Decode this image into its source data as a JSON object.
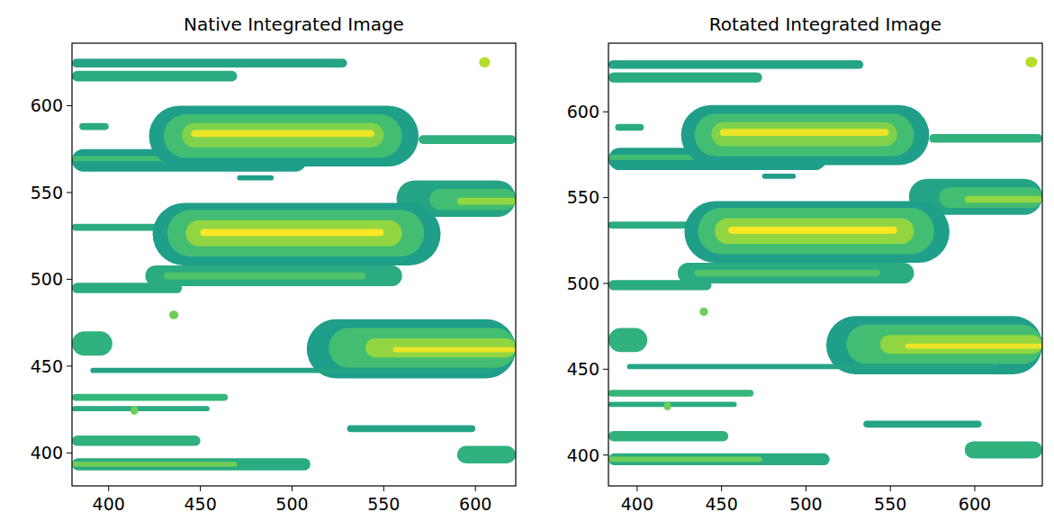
{
  "chart_data": [
    {
      "type": "heatmap",
      "title": "Native Integrated Image",
      "color": "viridis",
      "xlim": [
        380,
        622
      ],
      "ylim": [
        381,
        636
      ],
      "zlim": [
        0,
        1
      ],
      "xticks": [
        400,
        450,
        500,
        550,
        600
      ],
      "yticks": [
        400,
        450,
        500,
        550,
        600
      ],
      "features": [
        {
          "x": [
            380,
            530
          ],
          "y": [
            622,
            627
          ],
          "value": 0.25
        },
        {
          "x": [
            380,
            470
          ],
          "y": [
            614,
            620
          ],
          "value": 0.3
        },
        {
          "x": [
            602,
            608
          ],
          "y": [
            622,
            628
          ],
          "value": 0.8
        },
        {
          "x": [
            384,
            400
          ],
          "y": [
            586,
            590
          ],
          "value": 0.3
        },
        {
          "x": [
            380,
            508
          ],
          "y": [
            562,
            575
          ],
          "value": 0.2
        },
        {
          "x": [
            380,
            480
          ],
          "y": [
            568,
            571
          ],
          "value": 0.45
        },
        {
          "x": [
            422,
            569
          ],
          "y": [
            565,
            600
          ],
          "value": 0.2
        },
        {
          "x": [
            430,
            560
          ],
          "y": [
            570,
            595
          ],
          "value": 0.45
        },
        {
          "x": [
            440,
            550
          ],
          "y": [
            576,
            590
          ],
          "value": 0.65
        },
        {
          "x": [
            445,
            545
          ],
          "y": [
            582,
            586
          ],
          "value": 0.95
        },
        {
          "x": [
            569,
            622
          ],
          "y": [
            578,
            583
          ],
          "value": 0.35
        },
        {
          "x": [
            470,
            490
          ],
          "y": [
            557,
            560
          ],
          "value": 0.2
        },
        {
          "x": [
            557,
            622
          ],
          "y": [
            536,
            557
          ],
          "value": 0.25
        },
        {
          "x": [
            575,
            622
          ],
          "y": [
            540,
            552
          ],
          "value": 0.45
        },
        {
          "x": [
            590,
            622
          ],
          "y": [
            543,
            547
          ],
          "value": 0.7
        },
        {
          "x": [
            380,
            440
          ],
          "y": [
            528,
            532
          ],
          "value": 0.3
        },
        {
          "x": [
            424,
            581
          ],
          "y": [
            508,
            544
          ],
          "value": 0.2
        },
        {
          "x": [
            432,
            572
          ],
          "y": [
            513,
            540
          ],
          "value": 0.45
        },
        {
          "x": [
            442,
            560
          ],
          "y": [
            519,
            534
          ],
          "value": 0.7
        },
        {
          "x": [
            450,
            550
          ],
          "y": [
            525,
            529
          ],
          "value": 1.0
        },
        {
          "x": [
            420,
            560
          ],
          "y": [
            496,
            508
          ],
          "value": 0.3
        },
        {
          "x": [
            430,
            540
          ],
          "y": [
            500,
            504
          ],
          "value": 0.5
        },
        {
          "x": [
            380,
            440
          ],
          "y": [
            492,
            498
          ],
          "value": 0.3
        },
        {
          "x": [
            433,
            438
          ],
          "y": [
            477,
            482
          ],
          "value": 0.6
        },
        {
          "x": [
            380,
            402
          ],
          "y": [
            456,
            470
          ],
          "value": 0.35
        },
        {
          "x": [
            508,
            622
          ],
          "y": [
            443,
            477
          ],
          "value": 0.2
        },
        {
          "x": [
            520,
            622
          ],
          "y": [
            449,
            472
          ],
          "value": 0.45
        },
        {
          "x": [
            540,
            622
          ],
          "y": [
            455,
            466
          ],
          "value": 0.7
        },
        {
          "x": [
            555,
            622
          ],
          "y": [
            458,
            461
          ],
          "value": 0.95
        },
        {
          "x": [
            390,
            610
          ],
          "y": [
            446,
            449
          ],
          "value": 0.25
        },
        {
          "x": [
            380,
            465
          ],
          "y": [
            430,
            434
          ],
          "value": 0.4
        },
        {
          "x": [
            380,
            455
          ],
          "y": [
            424,
            427
          ],
          "value": 0.3
        },
        {
          "x": [
            412,
            416
          ],
          "y": [
            422,
            427
          ],
          "value": 0.6
        },
        {
          "x": [
            530,
            600
          ],
          "y": [
            412,
            416
          ],
          "value": 0.25
        },
        {
          "x": [
            380,
            450
          ],
          "y": [
            404,
            410
          ],
          "value": 0.35
        },
        {
          "x": [
            590,
            622
          ],
          "y": [
            394,
            404
          ],
          "value": 0.35
        },
        {
          "x": [
            380,
            510
          ],
          "y": [
            390,
            397
          ],
          "value": 0.3
        },
        {
          "x": [
            380,
            470
          ],
          "y": [
            392,
            395
          ],
          "value": 0.6
        }
      ]
    },
    {
      "type": "heatmap",
      "title": "Rotated Integrated Image",
      "color": "viridis",
      "xlim": [
        383,
        640
      ],
      "ylim": [
        382,
        640
      ],
      "zlim": [
        0,
        1
      ],
      "xticks": [
        400,
        450,
        500,
        550,
        600
      ],
      "yticks": [
        400,
        450,
        500,
        550,
        600
      ],
      "features": [
        {
          "x": [
            383,
            534
          ],
          "y": [
            625,
            630
          ],
          "value": 0.25
        },
        {
          "x": [
            383,
            474
          ],
          "y": [
            617,
            623
          ],
          "value": 0.3
        },
        {
          "x": [
            630,
            637
          ],
          "y": [
            626,
            632
          ],
          "value": 0.8
        },
        {
          "x": [
            387,
            404
          ],
          "y": [
            589,
            593
          ],
          "value": 0.3
        },
        {
          "x": [
            383,
            512
          ],
          "y": [
            566,
            579
          ],
          "value": 0.2
        },
        {
          "x": [
            383,
            484
          ],
          "y": [
            572,
            575
          ],
          "value": 0.45
        },
        {
          "x": [
            426,
            573
          ],
          "y": [
            569,
            604
          ],
          "value": 0.2
        },
        {
          "x": [
            434,
            564
          ],
          "y": [
            574,
            599
          ],
          "value": 0.45
        },
        {
          "x": [
            444,
            554
          ],
          "y": [
            580,
            594
          ],
          "value": 0.65
        },
        {
          "x": [
            449,
            549
          ],
          "y": [
            586,
            590
          ],
          "value": 0.95
        },
        {
          "x": [
            573,
            640
          ],
          "y": [
            582,
            587
          ],
          "value": 0.35
        },
        {
          "x": [
            474,
            494
          ],
          "y": [
            561,
            564
          ],
          "value": 0.2
        },
        {
          "x": [
            561,
            640
          ],
          "y": [
            540,
            561
          ],
          "value": 0.25
        },
        {
          "x": [
            579,
            640
          ],
          "y": [
            544,
            556
          ],
          "value": 0.45
        },
        {
          "x": [
            594,
            640
          ],
          "y": [
            547,
            551
          ],
          "value": 0.7
        },
        {
          "x": [
            383,
            444
          ],
          "y": [
            532,
            536
          ],
          "value": 0.3
        },
        {
          "x": [
            428,
            585
          ],
          "y": [
            512,
            548
          ],
          "value": 0.2
        },
        {
          "x": [
            436,
            576
          ],
          "y": [
            517,
            544
          ],
          "value": 0.45
        },
        {
          "x": [
            446,
            564
          ],
          "y": [
            523,
            538
          ],
          "value": 0.7
        },
        {
          "x": [
            454,
            554
          ],
          "y": [
            529,
            533
          ],
          "value": 1.0
        },
        {
          "x": [
            424,
            564
          ],
          "y": [
            500,
            512
          ],
          "value": 0.3
        },
        {
          "x": [
            434,
            544
          ],
          "y": [
            504,
            508
          ],
          "value": 0.5
        },
        {
          "x": [
            383,
            444
          ],
          "y": [
            496,
            502
          ],
          "value": 0.3
        },
        {
          "x": [
            437,
            442
          ],
          "y": [
            481,
            486
          ],
          "value": 0.6
        },
        {
          "x": [
            383,
            406
          ],
          "y": [
            460,
            474
          ],
          "value": 0.35
        },
        {
          "x": [
            512,
            640
          ],
          "y": [
            447,
            481
          ],
          "value": 0.2
        },
        {
          "x": [
            524,
            640
          ],
          "y": [
            453,
            476
          ],
          "value": 0.45
        },
        {
          "x": [
            544,
            640
          ],
          "y": [
            459,
            470
          ],
          "value": 0.7
        },
        {
          "x": [
            559,
            640
          ],
          "y": [
            462,
            465
          ],
          "value": 0.95
        },
        {
          "x": [
            394,
            614
          ],
          "y": [
            450,
            453
          ],
          "value": 0.25
        },
        {
          "x": [
            383,
            469
          ],
          "y": [
            434,
            438
          ],
          "value": 0.4
        },
        {
          "x": [
            383,
            459
          ],
          "y": [
            428,
            431
          ],
          "value": 0.3
        },
        {
          "x": [
            416,
            420
          ],
          "y": [
            426,
            431
          ],
          "value": 0.6
        },
        {
          "x": [
            534,
            604
          ],
          "y": [
            416,
            420
          ],
          "value": 0.25
        },
        {
          "x": [
            383,
            454
          ],
          "y": [
            408,
            414
          ],
          "value": 0.35
        },
        {
          "x": [
            594,
            640
          ],
          "y": [
            398,
            408
          ],
          "value": 0.35
        },
        {
          "x": [
            383,
            514
          ],
          "y": [
            394,
            401
          ],
          "value": 0.3
        },
        {
          "x": [
            383,
            474
          ],
          "y": [
            396,
            399
          ],
          "value": 0.6
        }
      ]
    }
  ]
}
